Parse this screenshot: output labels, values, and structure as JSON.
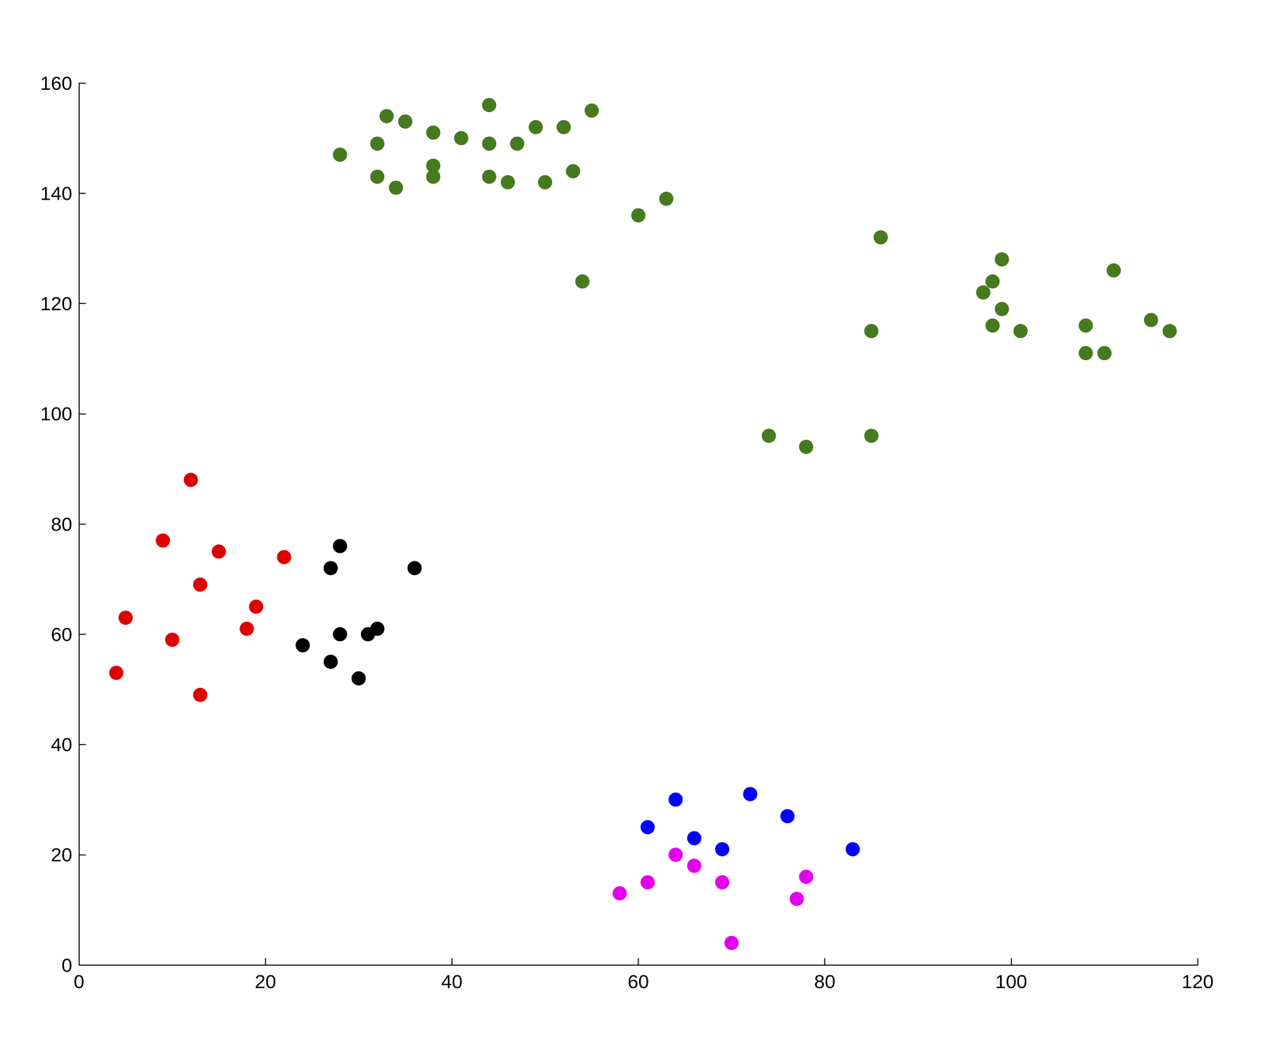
{
  "chart_data": {
    "type": "scatter",
    "xlim": [
      0,
      120
    ],
    "xticks": [
      0,
      20,
      40,
      60,
      80,
      100,
      120
    ],
    "ylim": [
      0,
      160
    ],
    "yticks": [
      0,
      20,
      40,
      60,
      80,
      100,
      120,
      140,
      160
    ],
    "grid": false,
    "marker": "circle",
    "series": [
      {
        "color": "#467a1e",
        "values": [
          [
            28,
            147
          ],
          [
            32,
            149
          ],
          [
            32,
            143
          ],
          [
            33,
            154
          ],
          [
            34,
            141
          ],
          [
            35,
            153
          ],
          [
            38,
            151
          ],
          [
            38,
            145
          ],
          [
            38,
            143
          ],
          [
            41,
            150
          ],
          [
            44,
            156
          ],
          [
            44,
            149
          ],
          [
            44,
            143
          ],
          [
            46,
            142
          ],
          [
            47,
            149
          ],
          [
            49,
            152
          ],
          [
            50,
            142
          ],
          [
            52,
            152
          ],
          [
            53,
            144
          ],
          [
            55,
            155
          ],
          [
            60,
            136
          ],
          [
            63,
            139
          ],
          [
            54,
            124
          ],
          [
            86,
            132
          ],
          [
            85,
            115
          ],
          [
            97,
            122
          ],
          [
            98,
            124
          ],
          [
            99,
            128
          ],
          [
            99,
            119
          ],
          [
            98,
            116
          ],
          [
            101,
            115
          ],
          [
            108,
            116
          ],
          [
            108,
            111
          ],
          [
            110,
            111
          ],
          [
            111,
            126
          ],
          [
            115,
            117
          ],
          [
            117,
            115
          ],
          [
            74,
            96
          ],
          [
            78,
            94
          ],
          [
            85,
            96
          ]
        ]
      },
      {
        "color": "#dd0000",
        "values": [
          [
            12,
            88
          ],
          [
            9,
            77
          ],
          [
            15,
            75
          ],
          [
            22,
            74
          ],
          [
            13,
            69
          ],
          [
            19,
            65
          ],
          [
            5,
            63
          ],
          [
            18,
            61
          ],
          [
            10,
            59
          ],
          [
            4,
            53
          ],
          [
            13,
            49
          ]
        ]
      },
      {
        "color": "#000000",
        "values": [
          [
            28,
            76
          ],
          [
            27,
            72
          ],
          [
            36,
            72
          ],
          [
            32,
            61
          ],
          [
            31,
            60
          ],
          [
            28,
            60
          ],
          [
            24,
            58
          ],
          [
            27,
            55
          ],
          [
            30,
            52
          ]
        ]
      },
      {
        "color": "#0000ff",
        "values": [
          [
            64,
            30
          ],
          [
            72,
            31
          ],
          [
            76,
            27
          ],
          [
            61,
            25
          ],
          [
            66,
            23
          ],
          [
            69,
            21
          ],
          [
            83,
            21
          ]
        ]
      },
      {
        "color": "#e300ee",
        "values": [
          [
            64,
            20
          ],
          [
            66,
            18
          ],
          [
            78,
            16
          ],
          [
            58,
            13
          ],
          [
            61,
            15
          ],
          [
            69,
            15
          ],
          [
            77,
            12
          ],
          [
            70,
            4
          ]
        ]
      }
    ]
  }
}
